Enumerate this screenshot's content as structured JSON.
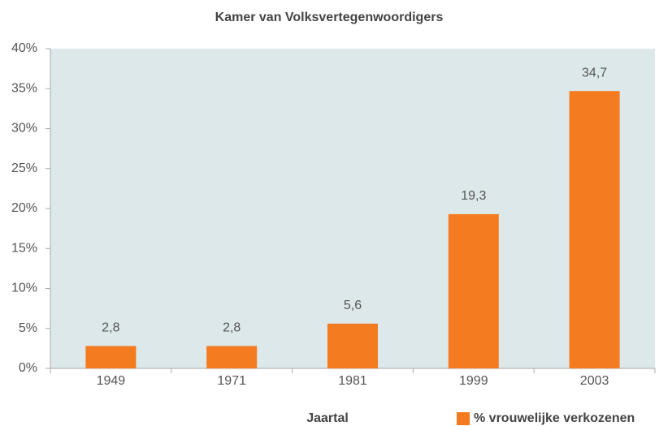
{
  "chart_data": {
    "type": "bar",
    "title": "Kamer van Volksvertegenwoordigers",
    "x_label": "Jaartal",
    "categories": [
      "1949",
      "1971",
      "1981",
      "1999",
      "2003"
    ],
    "series": [
      {
        "name": "% vrouwelijke verkozenen",
        "color": "#f47b20",
        "values": [
          2.8,
          2.8,
          5.6,
          19.3,
          34.7
        ],
        "value_labels": [
          "2,8",
          "2,8",
          "5,6",
          "19,3",
          "34,7"
        ]
      }
    ],
    "ylim": [
      0,
      40
    ],
    "yticks": [
      {
        "value": 0,
        "label": "0%"
      },
      {
        "value": 5,
        "label": "5%"
      },
      {
        "value": 10,
        "label": "10%"
      },
      {
        "value": 15,
        "label": "15%"
      },
      {
        "value": 20,
        "label": "20%"
      },
      {
        "value": 25,
        "label": "25%"
      },
      {
        "value": 30,
        "label": "30%"
      },
      {
        "value": 35,
        "label": "35%"
      },
      {
        "value": 40,
        "label": "40%"
      }
    ],
    "plot_background": "#dce8e9"
  }
}
